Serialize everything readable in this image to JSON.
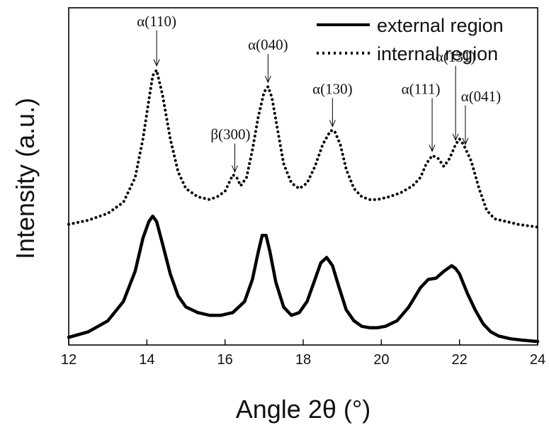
{
  "chart_data": {
    "type": "line",
    "xlabel": "Angle 2θ (°)",
    "ylabel": "Intensity (a.u.)",
    "xlim": [
      12,
      24
    ],
    "ylim": [
      0,
      1.0
    ],
    "x_ticks": [
      "12",
      "14",
      "16",
      "18",
      "20",
      "22",
      "24"
    ],
    "grid": false,
    "y_tick_labels": false,
    "legend_position": "top-right",
    "series": [
      {
        "name": "external region",
        "style": "solid",
        "color": "#000000",
        "x": [
          12.0,
          12.5,
          13.0,
          13.4,
          13.7,
          13.9,
          14.05,
          14.15,
          14.25,
          14.4,
          14.6,
          14.8,
          15.0,
          15.3,
          15.6,
          15.9,
          16.2,
          16.5,
          16.7,
          16.85,
          16.95,
          17.05,
          17.15,
          17.3,
          17.5,
          17.7,
          17.9,
          18.1,
          18.3,
          18.45,
          18.6,
          18.75,
          18.9,
          19.1,
          19.3,
          19.5,
          19.7,
          19.9,
          20.1,
          20.4,
          20.7,
          21.0,
          21.2,
          21.4,
          21.6,
          21.8,
          21.9,
          22.0,
          22.2,
          22.4,
          22.6,
          22.8,
          23.0,
          23.3,
          23.6,
          24.0
        ],
        "values": [
          0.02,
          0.04,
          0.08,
          0.15,
          0.26,
          0.38,
          0.44,
          0.46,
          0.44,
          0.36,
          0.25,
          0.17,
          0.13,
          0.11,
          0.1,
          0.1,
          0.11,
          0.15,
          0.23,
          0.33,
          0.39,
          0.39,
          0.33,
          0.22,
          0.13,
          0.1,
          0.11,
          0.15,
          0.23,
          0.29,
          0.31,
          0.28,
          0.21,
          0.12,
          0.08,
          0.06,
          0.055,
          0.055,
          0.06,
          0.08,
          0.13,
          0.2,
          0.23,
          0.235,
          0.26,
          0.28,
          0.27,
          0.25,
          0.18,
          0.12,
          0.07,
          0.04,
          0.025,
          0.015,
          0.01,
          0.005
        ]
      },
      {
        "name": "internal region",
        "style": "dotted",
        "color": "#000000",
        "x": [
          12.0,
          12.5,
          13.0,
          13.4,
          13.7,
          13.9,
          14.05,
          14.15,
          14.25,
          14.4,
          14.6,
          14.8,
          15.0,
          15.3,
          15.6,
          15.8,
          16.0,
          16.1,
          16.2,
          16.3,
          16.4,
          16.55,
          16.7,
          16.85,
          17.0,
          17.1,
          17.2,
          17.35,
          17.5,
          17.7,
          17.9,
          18.1,
          18.3,
          18.5,
          18.7,
          18.8,
          18.95,
          19.1,
          19.3,
          19.5,
          19.7,
          19.9,
          20.2,
          20.5,
          20.8,
          21.0,
          21.15,
          21.3,
          21.45,
          21.6,
          21.75,
          21.9,
          22.0,
          22.1,
          22.3,
          22.5,
          22.7,
          22.9,
          23.2,
          23.5,
          24.0
        ],
        "values": [
          0.43,
          0.445,
          0.47,
          0.51,
          0.6,
          0.74,
          0.88,
          0.97,
          0.99,
          0.9,
          0.74,
          0.62,
          0.56,
          0.53,
          0.52,
          0.53,
          0.55,
          0.58,
          0.61,
          0.6,
          0.57,
          0.6,
          0.7,
          0.82,
          0.91,
          0.93,
          0.89,
          0.77,
          0.65,
          0.58,
          0.56,
          0.58,
          0.64,
          0.72,
          0.77,
          0.77,
          0.72,
          0.63,
          0.56,
          0.53,
          0.52,
          0.52,
          0.53,
          0.545,
          0.57,
          0.6,
          0.65,
          0.68,
          0.67,
          0.64,
          0.67,
          0.72,
          0.74,
          0.72,
          0.66,
          0.56,
          0.48,
          0.45,
          0.44,
          0.43,
          0.42
        ]
      }
    ],
    "annotations": [
      {
        "text": "α(110)",
        "x": 14.25,
        "series": 1
      },
      {
        "text": "β(300)",
        "x": 16.25,
        "series": 1
      },
      {
        "text": "α(040)",
        "x": 17.1,
        "series": 1
      },
      {
        "text": "α(130)",
        "x": 18.75,
        "series": 1
      },
      {
        "text": "α(111)",
        "x": 21.3,
        "series": 1
      },
      {
        "text": "α(131)",
        "x": 21.9,
        "series": 1
      },
      {
        "text": "α(041)",
        "x": 22.15,
        "series": 1
      }
    ]
  }
}
